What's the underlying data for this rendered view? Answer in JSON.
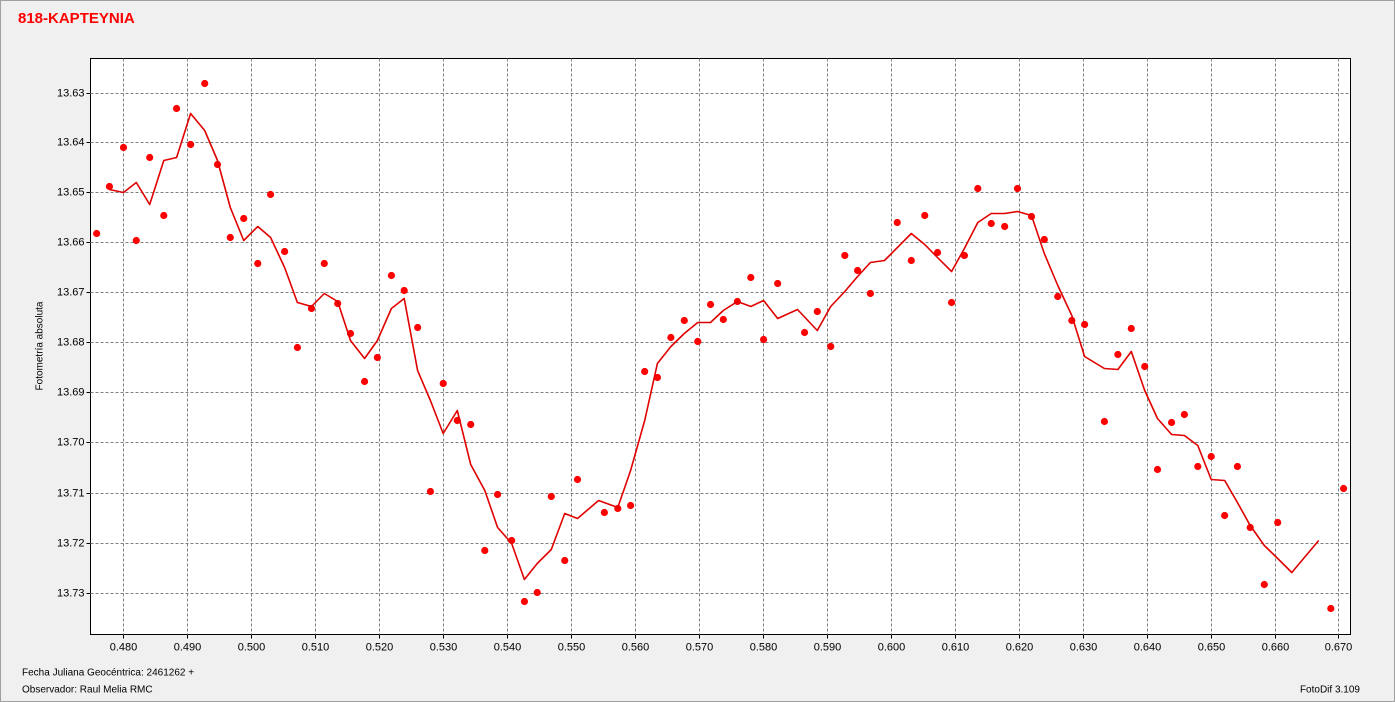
{
  "chart_data": {
    "type": "scatter",
    "title": "818-KAPTEYNIA",
    "ylabel": "Fotometría absoluta",
    "footnotes": [
      "Fecha Juliana Geocéntrica: 2461262 +",
      "Observador: Raul Melia RMC",
      "FotoDif 3.109"
    ],
    "xlim": [
      0.47484,
      0.67188
    ],
    "ylim": [
      13.7384,
      13.6232
    ],
    "xticks": [
      {
        "value": 0.48,
        "label": "0.480"
      },
      {
        "value": 0.49,
        "label": "0.490"
      },
      {
        "value": 0.5,
        "label": "0.500"
      },
      {
        "value": 0.51,
        "label": "0.510"
      },
      {
        "value": 0.52,
        "label": "0.520"
      },
      {
        "value": 0.53,
        "label": "0.530"
      },
      {
        "value": 0.54,
        "label": "0.540"
      },
      {
        "value": 0.55,
        "label": "0.550"
      },
      {
        "value": 0.56,
        "label": "0.560"
      },
      {
        "value": 0.57,
        "label": "0.570"
      },
      {
        "value": 0.58,
        "label": "0.580"
      },
      {
        "value": 0.59,
        "label": "0.590"
      },
      {
        "value": 0.6,
        "label": "0.600"
      },
      {
        "value": 0.61,
        "label": "0.610"
      },
      {
        "value": 0.62,
        "label": "0.620"
      },
      {
        "value": 0.63,
        "label": "0.630"
      },
      {
        "value": 0.64,
        "label": "0.640"
      },
      {
        "value": 0.65,
        "label": "0.650"
      },
      {
        "value": 0.66,
        "label": "0.660"
      },
      {
        "value": 0.67,
        "label": "0.670"
      }
    ],
    "yticks": [
      13.63,
      13.64,
      13.65,
      13.66,
      13.67,
      13.68,
      13.69,
      {
        "value": 13.7,
        "label": "13.70"
      },
      13.71,
      13.72,
      13.73
    ],
    "grid": true,
    "series": [
      {
        "type": "scatter",
        "color": "#ff0000",
        "x": [
          0.4758,
          0.4778,
          0.48,
          0.482,
          0.4841,
          0.4863,
          0.4883,
          0.4905,
          0.4927,
          0.4947,
          0.4967,
          0.4988,
          0.501,
          0.503,
          0.5052,
          0.5072,
          0.5094,
          0.5114,
          0.5135,
          0.5155,
          0.5177,
          0.5197,
          0.5219,
          0.5239,
          0.526,
          0.528,
          0.53,
          0.5322,
          0.5343,
          0.5365,
          0.5385,
          0.5407,
          0.5427,
          0.5447,
          0.5469,
          0.549,
          0.551,
          0.5552,
          0.5573,
          0.5593,
          0.5615,
          0.5635,
          0.5656,
          0.5677,
          0.5698,
          0.5718,
          0.5738,
          0.576,
          0.5781,
          0.5801,
          0.5823,
          0.5865,
          0.5885,
          0.5906,
          0.5928,
          0.5948,
          0.5968,
          0.601,
          0.6032,
          0.6053,
          0.6073,
          0.6095,
          0.6115,
          0.6136,
          0.6157,
          0.6178,
          0.6198,
          0.622,
          0.624,
          0.6261,
          0.6283,
          0.6303,
          0.6334,
          0.6355,
          0.6376,
          0.6397,
          0.6417,
          0.6439,
          0.6459,
          0.648,
          0.6501,
          0.6522,
          0.6542,
          0.6562,
          0.6584,
          0.6605,
          0.6688,
          0.6708
        ],
        "values": [
          13.6582,
          13.6488,
          13.641,
          13.6596,
          13.643,
          13.6546,
          13.6332,
          13.6404,
          13.6282,
          13.6444,
          13.659,
          13.6552,
          13.6642,
          13.6504,
          13.6618,
          13.681,
          13.6732,
          13.6642,
          13.6722,
          13.6782,
          13.6878,
          13.683,
          13.6666,
          13.6696,
          13.677,
          13.7098,
          13.6882,
          13.6956,
          13.6964,
          13.7216,
          13.7104,
          13.7196,
          13.7318,
          13.73,
          13.7108,
          13.7236,
          13.7074,
          13.714,
          13.7132,
          13.7126,
          13.6858,
          13.687,
          13.679,
          13.6756,
          13.6798,
          13.6724,
          13.6754,
          13.6718,
          13.667,
          13.6794,
          13.6682,
          13.678,
          13.6738,
          13.6808,
          13.6626,
          13.6656,
          13.6702,
          13.656,
          13.6636,
          13.6546,
          13.662,
          13.672,
          13.6626,
          13.6492,
          13.6562,
          13.6568,
          13.6492,
          13.6548,
          13.6594,
          13.6708,
          13.6756,
          13.6764,
          13.6958,
          13.6824,
          13.6772,
          13.6848,
          13.7054,
          13.696,
          13.6944,
          13.7048,
          13.7028,
          13.7146,
          13.7048,
          13.717,
          13.7284,
          13.716,
          13.7332,
          13.7092
        ]
      },
      {
        "type": "line",
        "color": "#e00000",
        "x": [
          0.4778,
          0.48,
          0.482,
          0.4841,
          0.4863,
          0.4883,
          0.4905,
          0.4927,
          0.4947,
          0.4967,
          0.4988,
          0.501,
          0.503,
          0.5052,
          0.5072,
          0.5094,
          0.5114,
          0.5135,
          0.5155,
          0.5177,
          0.5197,
          0.5219,
          0.5239,
          0.526,
          0.528,
          0.53,
          0.5322,
          0.5343,
          0.5365,
          0.5385,
          0.5407,
          0.5427,
          0.5447,
          0.5469,
          0.549,
          0.551,
          0.5543,
          0.5573,
          0.5593,
          0.5615,
          0.5635,
          0.5656,
          0.5677,
          0.5698,
          0.5718,
          0.5738,
          0.576,
          0.5781,
          0.5801,
          0.5823,
          0.5854,
          0.5885,
          0.5906,
          0.5928,
          0.5948,
          0.5968,
          0.599,
          0.6032,
          0.6053,
          0.6073,
          0.6095,
          0.6115,
          0.6136,
          0.6157,
          0.6178,
          0.6198,
          0.622,
          0.624,
          0.6261,
          0.6283,
          0.6303,
          0.6334,
          0.6355,
          0.6376,
          0.6397,
          0.6417,
          0.6439,
          0.6459,
          0.648,
          0.6501,
          0.6522,
          0.6542,
          0.6562,
          0.6584,
          0.6605,
          0.6627,
          0.6669
        ],
        "values": [
          13.6494,
          13.65,
          13.648,
          13.6524,
          13.6436,
          13.643,
          13.6342,
          13.6376,
          13.6436,
          13.653,
          13.6596,
          13.6568,
          13.659,
          13.665,
          13.672,
          13.6728,
          13.6702,
          13.6718,
          13.6796,
          13.6832,
          13.6796,
          13.6732,
          13.6712,
          13.6856,
          13.6916,
          13.6982,
          13.6936,
          13.7044,
          13.7096,
          13.717,
          13.7202,
          13.7274,
          13.7242,
          13.7214,
          13.7142,
          13.7152,
          13.7116,
          13.713,
          13.7056,
          13.6956,
          13.6842,
          13.6808,
          13.6782,
          13.676,
          13.676,
          13.6736,
          13.6718,
          13.6728,
          13.6716,
          13.6752,
          13.6734,
          13.6776,
          13.6728,
          13.6698,
          13.6668,
          13.664,
          13.6636,
          13.6582,
          13.6604,
          13.663,
          13.6658,
          13.6612,
          13.656,
          13.6542,
          13.6542,
          13.6538,
          13.6546,
          13.6622,
          13.6686,
          13.6746,
          13.6828,
          13.6852,
          13.6854,
          13.6818,
          13.6896,
          13.6952,
          13.6984,
          13.6986,
          13.7006,
          13.7074,
          13.7076,
          13.712,
          13.7166,
          13.7206,
          13.7232,
          13.726,
          13.7196
        ]
      }
    ]
  }
}
